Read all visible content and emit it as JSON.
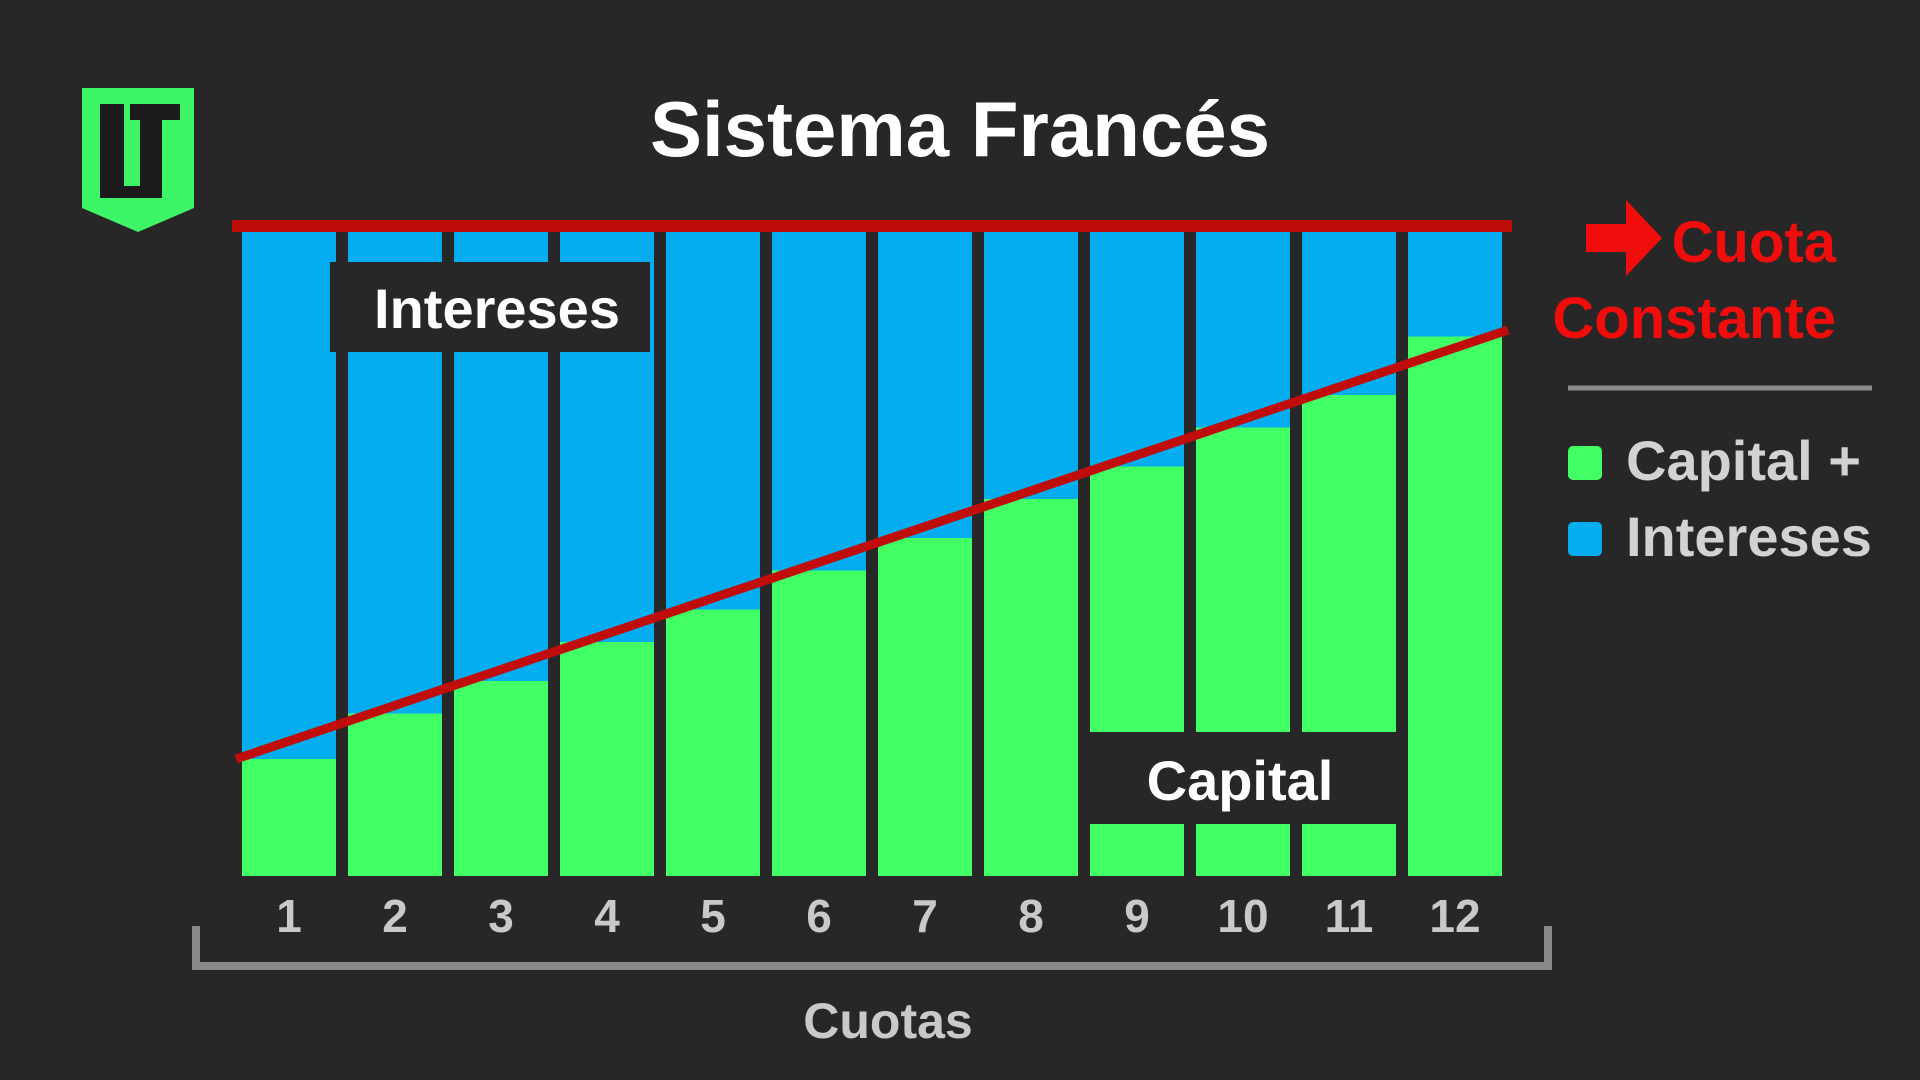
{
  "title": "Sistema Francés",
  "logo_text": "LT",
  "logo_icon": "lt-shield-logo-icon",
  "colors": {
    "background": "#272727",
    "capital": "#42ff66",
    "intereses": "#03adf0",
    "cuota_line": "#c10c0c",
    "cuota_text": "#f20d0d",
    "axis": "#8a8a8a",
    "logo": "#3df566"
  },
  "callout": {
    "arrow_icon": "right-arrow-icon",
    "line1": "Cuota",
    "line2": "Constante"
  },
  "labels": {
    "intereses_box": "Intereses",
    "capital_box": "Capital"
  },
  "chart_data": {
    "type": "bar",
    "stacked": true,
    "title": "Sistema Francés",
    "xlabel": "Cuotas",
    "ylabel": "",
    "categories": [
      "1",
      "2",
      "3",
      "4",
      "5",
      "6",
      "7",
      "8",
      "9",
      "10",
      "11",
      "12"
    ],
    "series": [
      {
        "name": "Capital",
        "color": "#42ff66",
        "values": [
          18,
          25,
          30,
          36,
          41,
          47,
          52,
          58,
          63,
          69,
          74,
          83
        ]
      },
      {
        "name": "Intereses",
        "color": "#03adf0",
        "values": [
          82,
          75,
          70,
          64,
          59,
          53,
          48,
          42,
          37,
          31,
          26,
          17
        ]
      }
    ],
    "ylim": [
      0,
      100
    ],
    "cuota_constante": 100,
    "trend_line": {
      "name": "Capital",
      "from": 18,
      "to": 84
    },
    "legend": {
      "placement": "right",
      "entries": [
        "Capital +",
        "Intereses"
      ]
    },
    "grid": false
  }
}
